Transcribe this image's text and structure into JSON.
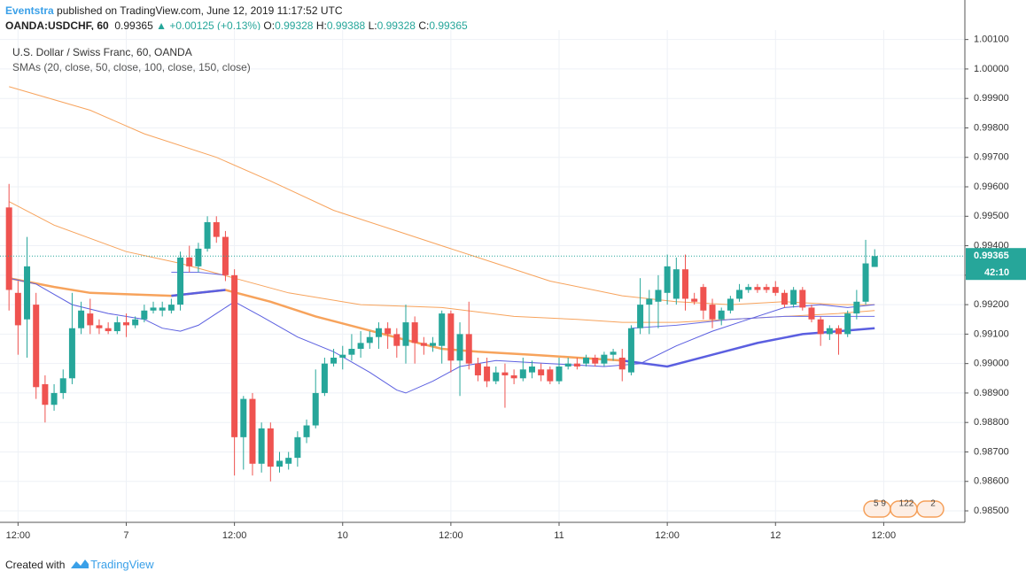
{
  "header": {
    "author": "Eventstra",
    "text": "published on TradingView.com, June 12, 2019 11:17:52 UTC",
    "symbol": "OANDA:USDCHF, 60",
    "last": "0.99365",
    "change": "+0.00125 (+0.13%)",
    "ohlc": [
      {
        "label": "O:",
        "value": "0.99328"
      },
      {
        "label": "H:",
        "value": "0.99388"
      },
      {
        "label": "L:",
        "value": "0.99328"
      },
      {
        "label": "C:",
        "value": "0.99365"
      }
    ]
  },
  "chart_data": {
    "type": "candlestick",
    "title": "U.S. Dollar / Swiss Franc, 60, OANDA",
    "subtitle": "SMAs (20, close, 50, close, 100, close, 150, close)",
    "up_color": "#26a69a",
    "down_color": "#ef5350",
    "grid": true,
    "open": [
      0.9953,
      0.9924,
      0.9915,
      0.992,
      0.9893,
      0.9886,
      0.989,
      0.9895,
      0.9912,
      0.9917,
      0.9913,
      0.9912,
      0.9911,
      0.9914,
      0.9913,
      0.9915,
      0.9918,
      0.9918,
      0.9918,
      0.992,
      0.9936,
      0.9933,
      0.9939,
      0.9948,
      0.9943,
      0.993,
      0.9875,
      0.9888,
      0.9866,
      0.9878,
      0.9865,
      0.9866,
      0.9868,
      0.9875,
      0.9879,
      0.989,
      0.99,
      0.9902,
      0.9903,
      0.9905,
      0.9907,
      0.9909,
      0.9912,
      0.991,
      0.9906,
      0.9914,
      0.9907,
      0.9906,
      0.9906,
      0.9917,
      0.9901,
      0.991,
      0.99,
      0.9899,
      0.9894,
      0.9897,
      0.9896,
      0.9895,
      0.9897,
      0.9898,
      0.9898,
      0.9894,
      0.9899,
      0.99,
      0.99,
      0.9902,
      0.99,
      0.9903,
      0.9902,
      0.9897,
      0.9912,
      0.992,
      0.9921,
      0.9924,
      0.9922,
      0.9932,
      0.9922,
      0.9926,
      0.992,
      0.9915,
      0.9918,
      0.9922,
      0.9925,
      0.9926,
      0.9926,
      0.9926,
      0.9924,
      0.992,
      0.9925,
      0.9919,
      0.9915,
      0.991,
      0.9912,
      0.991,
      0.9917,
      0.9921,
      0.99328
    ],
    "high": [
      0.9961,
      0.9928,
      0.9943,
      0.9924,
      0.9896,
      0.9893,
      0.9898,
      0.9924,
      0.9921,
      0.9922,
      0.9915,
      0.9914,
      0.9916,
      0.9917,
      0.9916,
      0.992,
      0.9921,
      0.9921,
      0.9922,
      0.9938,
      0.994,
      0.9941,
      0.995,
      0.995,
      0.9945,
      0.9932,
      0.9889,
      0.989,
      0.988,
      0.988,
      0.987,
      0.987,
      0.9877,
      0.9881,
      0.9898,
      0.9902,
      0.9905,
      0.9906,
      0.991,
      0.9911,
      0.9911,
      0.9914,
      0.9914,
      0.9912,
      0.992,
      0.9916,
      0.9909,
      0.9909,
      0.9918,
      0.9918,
      0.9914,
      0.9921,
      0.9902,
      0.9902,
      0.9899,
      0.99,
      0.9898,
      0.9902,
      0.9901,
      0.99,
      0.9899,
      0.9902,
      0.9902,
      0.9902,
      0.9903,
      0.9903,
      0.9904,
      0.9905,
      0.9905,
      0.9913,
      0.9929,
      0.9925,
      0.993,
      0.9937,
      0.9936,
      0.9937,
      0.9924,
      0.9927,
      0.9922,
      0.9919,
      0.9923,
      0.9927,
      0.9927,
      0.9927,
      0.9927,
      0.9928,
      0.9925,
      0.9926,
      0.9926,
      0.992,
      0.9916,
      0.9913,
      0.9913,
      0.9918,
      0.9925,
      0.9942,
      0.99388
    ],
    "low": [
      0.9918,
      0.9903,
      0.9902,
      0.9888,
      0.988,
      0.9884,
      0.9888,
      0.9893,
      0.991,
      0.991,
      0.991,
      0.991,
      0.991,
      0.9909,
      0.9912,
      0.9914,
      0.9917,
      0.9916,
      0.9917,
      0.9918,
      0.9931,
      0.9931,
      0.9938,
      0.9941,
      0.9928,
      0.9862,
      0.9864,
      0.9862,
      0.9863,
      0.986,
      0.9863,
      0.9864,
      0.9865,
      0.9873,
      0.9878,
      0.9889,
      0.9899,
      0.9898,
      0.9901,
      0.9902,
      0.9905,
      0.9905,
      0.9905,
      0.9902,
      0.99,
      0.99,
      0.9903,
      0.9904,
      0.99,
      0.9897,
      0.9889,
      0.9898,
      0.9894,
      0.9892,
      0.9893,
      0.9885,
      0.9893,
      0.9894,
      0.9895,
      0.9894,
      0.9893,
      0.9893,
      0.9898,
      0.9898,
      0.9899,
      0.9899,
      0.9899,
      0.9901,
      0.9894,
      0.9896,
      0.991,
      0.991,
      0.9912,
      0.992,
      0.992,
      0.9918,
      0.992,
      0.9915,
      0.9912,
      0.9913,
      0.9917,
      0.9921,
      0.9924,
      0.9924,
      0.9924,
      0.9923,
      0.9919,
      0.9919,
      0.9918,
      0.9914,
      0.9906,
      0.9908,
      0.9903,
      0.9909,
      0.9915,
      0.992,
      0.99328
    ],
    "close": [
      0.9925,
      0.9913,
      0.9933,
      0.9892,
      0.9886,
      0.989,
      0.9895,
      0.9912,
      0.9918,
      0.9913,
      0.9912,
      0.9911,
      0.9914,
      0.9913,
      0.9915,
      0.9918,
      0.9919,
      0.9919,
      0.992,
      0.9936,
      0.9933,
      0.9939,
      0.9948,
      0.9943,
      0.993,
      0.9875,
      0.9888,
      0.9866,
      0.9878,
      0.9865,
      0.9867,
      0.9868,
      0.9875,
      0.9879,
      0.989,
      0.99,
      0.9902,
      0.9903,
      0.9905,
      0.9907,
      0.9909,
      0.9912,
      0.991,
      0.9906,
      0.9914,
      0.9907,
      0.9906,
      0.9907,
      0.9917,
      0.9901,
      0.991,
      0.99,
      0.9896,
      0.9894,
      0.9897,
      0.9896,
      0.9895,
      0.9898,
      0.9899,
      0.9896,
      0.9894,
      0.9899,
      0.99,
      0.9899,
      0.9902,
      0.99,
      0.9903,
      0.9904,
      0.9898,
      0.9912,
      0.992,
      0.9922,
      0.9925,
      0.9933,
      0.9932,
      0.9922,
      0.9921,
      0.9918,
      0.9915,
      0.9918,
      0.9922,
      0.9925,
      0.9926,
      0.9925,
      0.9925,
      0.9924,
      0.992,
      0.9925,
      0.9919,
      0.9915,
      0.991,
      0.9912,
      0.991,
      0.9917,
      0.9921,
      0.9934,
      0.99365
    ],
    "overlays": [
      {
        "color": "#f7a35c",
        "width": 1,
        "x": [
          0,
          9,
          15,
          23,
          29,
          36,
          43,
          48,
          54,
          60,
          68,
          74,
          80,
          86,
          92,
          96
        ],
        "values": [
          0.9994,
          0.9986,
          0.9978,
          0.997,
          0.9962,
          0.9952,
          0.9945,
          0.994,
          0.9934,
          0.9928,
          0.9923,
          0.9921,
          0.992,
          0.9921,
          0.992,
          0.992
        ]
      },
      {
        "color": "#f7a35c",
        "width": 1,
        "x": [
          0,
          5,
          13,
          19,
          25,
          31,
          39,
          48,
          56,
          63,
          68,
          74,
          80,
          86,
          92,
          96
        ],
        "values": [
          0.9955,
          0.9947,
          0.9938,
          0.9934,
          0.9929,
          0.9924,
          0.992,
          0.9919,
          0.9916,
          0.9915,
          0.9914,
          0.9914,
          0.9915,
          0.9916,
          0.9917,
          0.9918
        ]
      },
      {
        "color": "#f7a35c",
        "width": 2.5,
        "x": [
          0,
          5,
          9,
          18,
          24,
          29,
          34,
          39,
          44,
          48,
          52,
          58,
          63,
          68
        ],
        "values": [
          0.9929,
          0.9926,
          0.9924,
          0.9923,
          0.9925,
          0.9921,
          0.9916,
          0.9912,
          0.9908,
          0.9905,
          0.9904,
          0.9903,
          0.9902,
          0.9901
        ]
      },
      {
        "color": "#5b5fe0",
        "width": 2.5,
        "x": [
          18,
          21,
          24,
          null,
          68,
          73,
          78,
          83,
          88,
          92,
          96
        ],
        "values": [
          0.9923,
          0.9924,
          0.9925,
          null,
          0.9901,
          0.9899,
          0.9903,
          0.9907,
          0.991,
          0.9911,
          0.9912
        ]
      },
      {
        "color": "#6a6ee6",
        "width": 1,
        "x": [
          18,
          21,
          24,
          null,
          69,
          74,
          80,
          86,
          92,
          96
        ],
        "values": [
          0.9931,
          0.9931,
          0.993,
          null,
          0.9912,
          0.9913,
          0.9915,
          0.9916,
          0.9916,
          0.9916
        ]
      },
      {
        "color": "#5b5fe0",
        "width": 1,
        "x": [
          0,
          3,
          7,
          11,
          15,
          17,
          19,
          21,
          23,
          25,
          28,
          32,
          36,
          40,
          43,
          44,
          47,
          50,
          54,
          60,
          66,
          70,
          74,
          78,
          82,
          86,
          90,
          93,
          96
        ],
        "values": [
          0.9929,
          0.9927,
          0.992,
          0.9917,
          0.9915,
          0.9912,
          0.9911,
          0.9913,
          0.9917,
          0.9921,
          0.9916,
          0.9909,
          0.9904,
          0.9897,
          0.9891,
          0.989,
          0.9894,
          0.9899,
          0.9901,
          0.99,
          0.9899,
          0.99,
          0.9906,
          0.9911,
          0.9915,
          0.9919,
          0.992,
          0.9919,
          0.992
        ]
      }
    ],
    "xlim": [
      -1,
      106
    ],
    "xticks": [
      {
        "value": 1,
        "label": "12:00"
      },
      {
        "value": 13,
        "label": "7"
      },
      {
        "value": 25,
        "label": "12:00"
      },
      {
        "value": 37,
        "label": "10"
      },
      {
        "value": 49,
        "label": "12:00"
      },
      {
        "value": 61,
        "label": "11"
      },
      {
        "value": 73,
        "label": "12:00"
      },
      {
        "value": 85,
        "label": "12"
      },
      {
        "value": 97,
        "label": "12:00"
      }
    ],
    "ylim": [
      0.98461,
      1.00132
    ],
    "yticks": [
      {
        "value": 0.985,
        "label": "0.98500"
      },
      {
        "value": 0.986,
        "label": "0.98600"
      },
      {
        "value": 0.987,
        "label": "0.98700"
      },
      {
        "value": 0.988,
        "label": "0.98800"
      },
      {
        "value": 0.989,
        "label": "0.98900"
      },
      {
        "value": 0.99,
        "label": "0.99000"
      },
      {
        "value": 0.991,
        "label": "0.99100"
      },
      {
        "value": 0.992,
        "label": "0.99200"
      },
      {
        "value": 0.993,
        "label": "0.99300"
      },
      {
        "value": 0.994,
        "label": "0.99400"
      },
      {
        "value": 0.995,
        "label": "0.99500"
      },
      {
        "value": 0.996,
        "label": "0.99600"
      },
      {
        "value": 0.997,
        "label": "0.99700"
      },
      {
        "value": 0.998,
        "label": "0.99800"
      },
      {
        "value": 0.999,
        "label": "0.99900"
      },
      {
        "value": 1,
        "label": "1.00000"
      },
      {
        "value": 1.001,
        "label": "1.00100"
      }
    ],
    "last_price": {
      "value": 0.99365,
      "label": "0.99365"
    },
    "countdown": "42:10",
    "events": [
      "5 9",
      "122",
      "2"
    ]
  },
  "footer": {
    "text": "Created with",
    "brand": "TradingView"
  }
}
